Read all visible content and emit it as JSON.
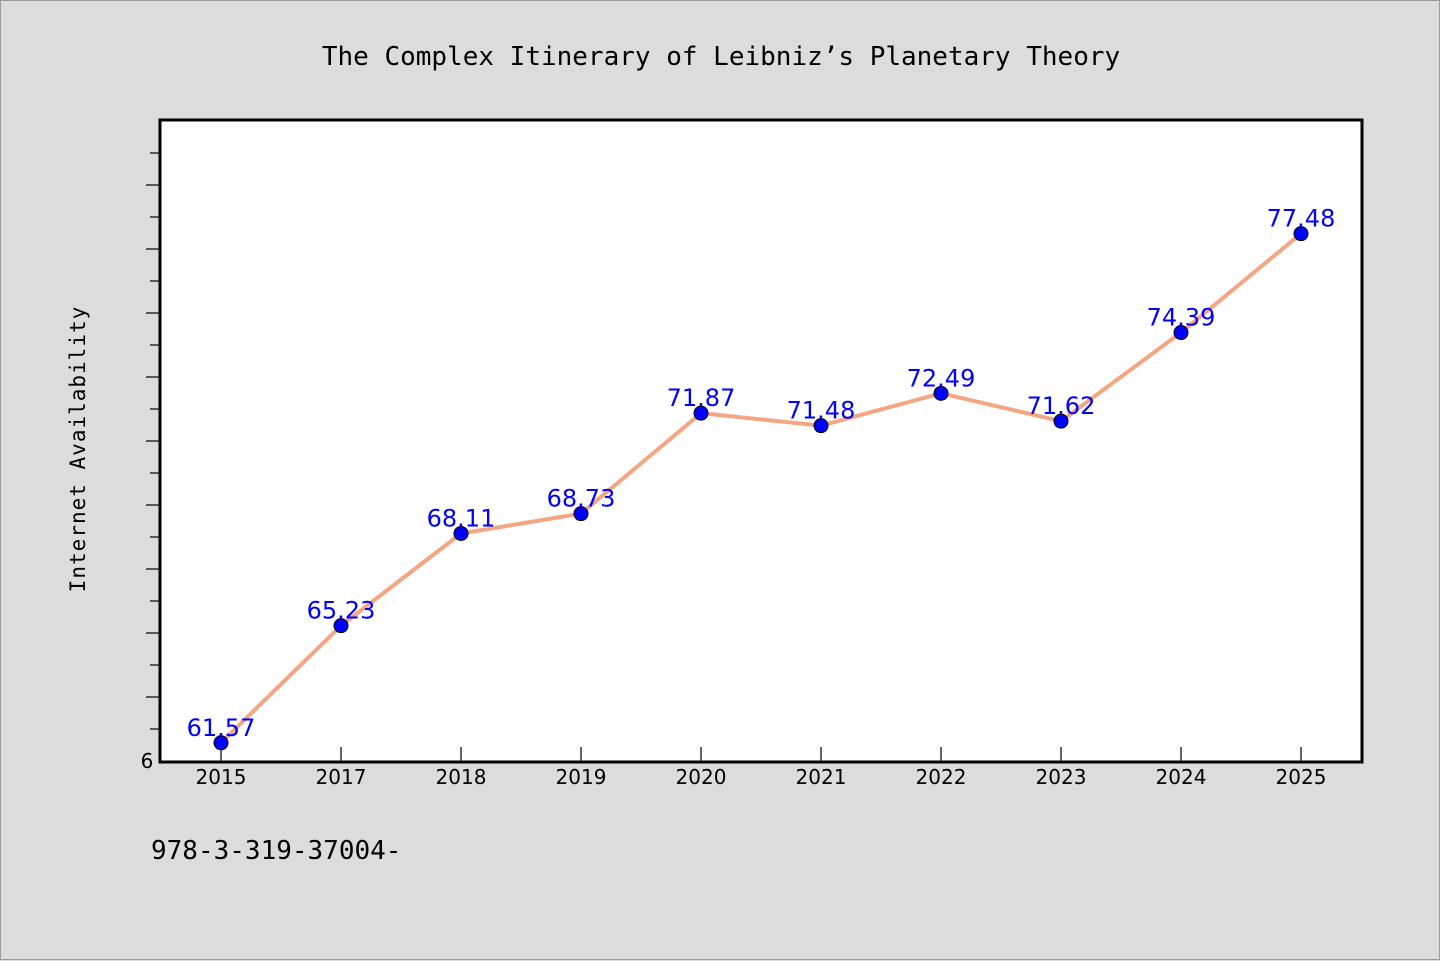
{
  "footer": {
    "code": "978-3-319-37004-"
  },
  "chart_data": {
    "type": "line",
    "title": "The Complex Itinerary of Leibniz’s Planetary Theory",
    "xlabel": "",
    "ylabel": "Internet Availability",
    "categories": [
      "2015",
      "2017",
      "2018",
      "2019",
      "2020",
      "2021",
      "2022",
      "2023",
      "2024",
      "2025"
    ],
    "series": [
      {
        "values": [
          61.57,
          65.23,
          68.11,
          68.73,
          71.87,
          71.48,
          72.49,
          71.62,
          74.39,
          77.48
        ],
        "data_labels": [
          "61.57",
          "65.23",
          "68.11",
          "68.73",
          "71.87",
          "71.48",
          "72.49",
          "71.62",
          "74.39",
          "77.48"
        ],
        "line_color": "#f4a582",
        "marker_color": "#0000ff",
        "label_color": "#0000ff"
      }
    ],
    "ylim": [
      61,
      81
    ],
    "y_tick_labels": [
      "6"
    ],
    "grid": false,
    "legend": "none"
  }
}
